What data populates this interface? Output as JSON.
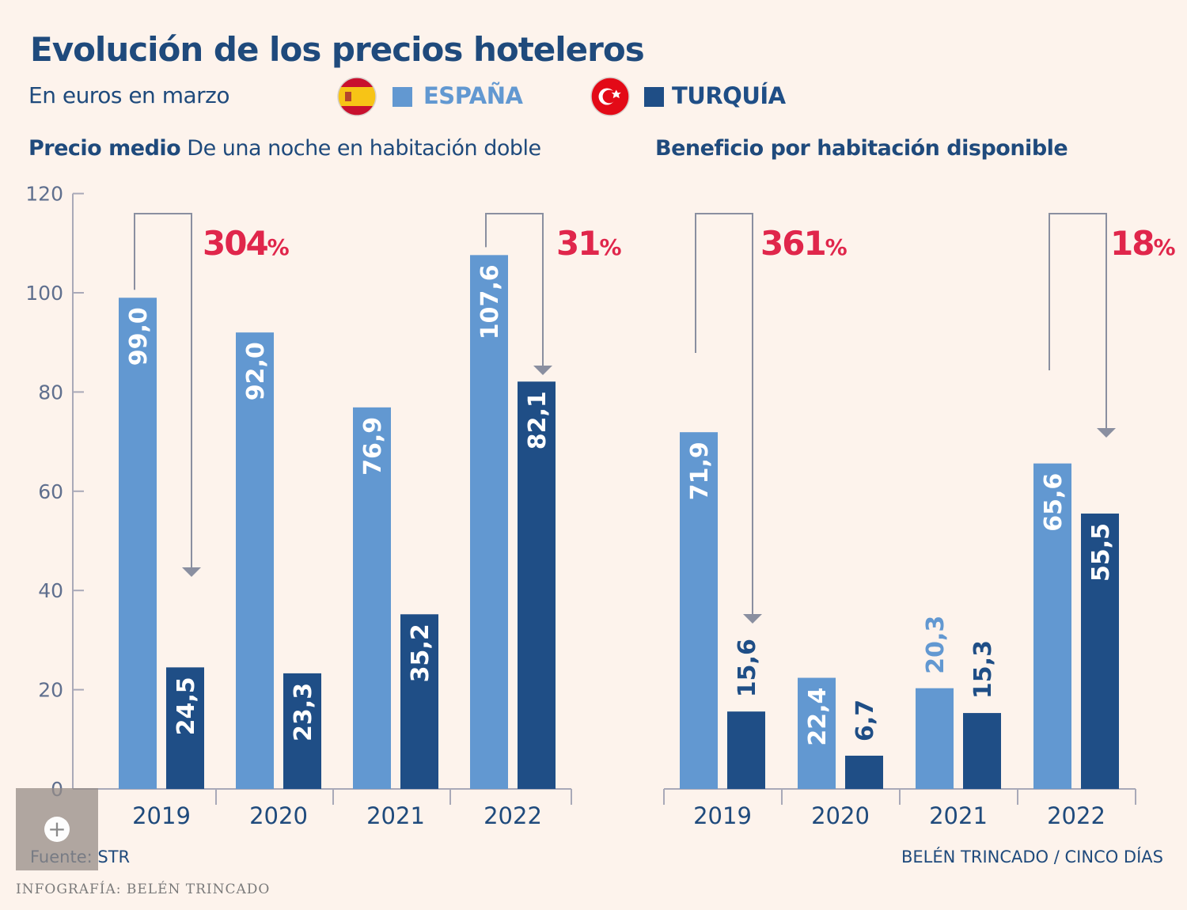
{
  "header": {
    "title": "Evolución de los precios hoteleros",
    "subtitle": "En euros en marzo"
  },
  "legend": [
    {
      "label": "ESPAÑA",
      "color": "#6298d1",
      "flag": "spain-flag-icon"
    },
    {
      "label": "TURQUÍA",
      "color": "#1f4e86",
      "flag": "turkey-flag-icon"
    }
  ],
  "panels": [
    {
      "title_bold": "Precio medio",
      "title_rest": " De una noche en habitación doble"
    },
    {
      "title_bold": "Beneficio por habitación disponible",
      "title_rest": ""
    }
  ],
  "chart_data": [
    {
      "type": "bar",
      "title": "Precio medio De una noche en habitación doble",
      "categories": [
        "2019",
        "2020",
        "2021",
        "2022"
      ],
      "series": [
        {
          "name": "ESPAÑA",
          "values": [
            99.0,
            92.0,
            76.9,
            107.6
          ],
          "labels": [
            "99,0",
            "92,0",
            "76,9",
            "107,6"
          ]
        },
        {
          "name": "TURQUÍA",
          "values": [
            24.5,
            23.3,
            35.2,
            82.1
          ],
          "labels": [
            "24,5",
            "23,3",
            "35,2",
            "82,1"
          ]
        }
      ],
      "ylim": [
        0,
        120
      ],
      "yticks": [
        0,
        20,
        40,
        60,
        80,
        100,
        120
      ],
      "annotations": [
        {
          "category": "2019",
          "value": "304",
          "unit": "%"
        },
        {
          "category": "2022",
          "value": "31",
          "unit": "%"
        }
      ]
    },
    {
      "type": "bar",
      "title": "Beneficio por habitación disponible",
      "categories": [
        "2019",
        "2020",
        "2021",
        "2022"
      ],
      "series": [
        {
          "name": "ESPAÑA",
          "values": [
            71.9,
            22.4,
            20.3,
            65.6
          ],
          "labels": [
            "71,9",
            "22,4",
            "20,3",
            "65,6"
          ]
        },
        {
          "name": "TURQUÍA",
          "values": [
            15.6,
            6.7,
            15.3,
            55.5
          ],
          "labels": [
            "15,6",
            "6,7",
            "15,3",
            "55,5"
          ]
        }
      ],
      "ylim": [
        0,
        120
      ],
      "annotations": [
        {
          "category": "2019",
          "value": "361",
          "unit": "%"
        },
        {
          "category": "2022",
          "value": "18",
          "unit": "%"
        }
      ]
    }
  ],
  "colors": {
    "spain": "#6298d1",
    "turkey": "#1f4e86",
    "accent": "#e0264b",
    "text": "#1f4a7c",
    "axis": "#a9a9b8"
  },
  "footer": {
    "source": "Fuente: STR",
    "credit": "BELÉN TRINCADO / CINCO DÍAS",
    "infografia": "INFOGRAFÍA: BELÉN TRINCADO"
  }
}
